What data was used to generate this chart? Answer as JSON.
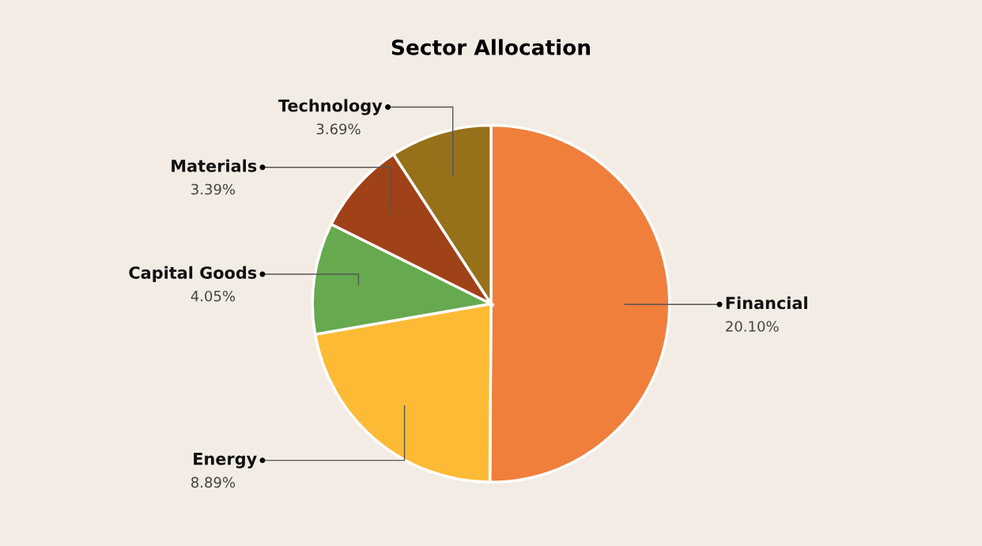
{
  "chart_data": {
    "type": "pie",
    "title": "Sector Allocation",
    "categories": [
      "Financial",
      "Energy",
      "Capital Goods",
      "Materials",
      "Technology"
    ],
    "values": [
      20.1,
      8.89,
      4.05,
      3.39,
      3.69
    ],
    "value_labels": [
      "20.10%",
      "8.89%",
      "4.05%",
      "3.39%",
      "3.69%"
    ],
    "colors": [
      "#f07f3c",
      "#fdbb35",
      "#67a94f",
      "#a04217",
      "#97701a"
    ],
    "legend": false
  }
}
